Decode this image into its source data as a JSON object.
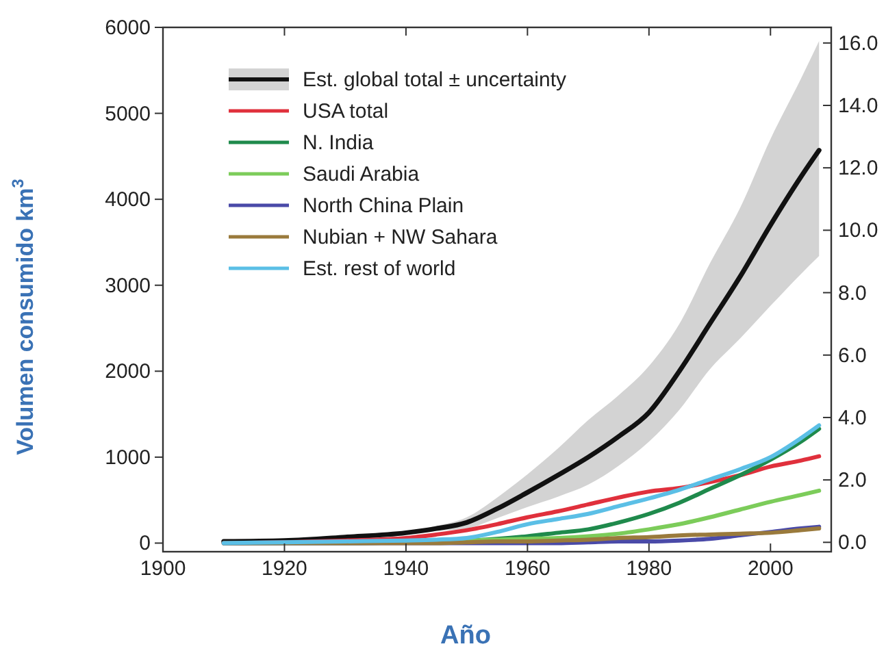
{
  "chart_data": {
    "type": "line",
    "xlabel": "Año",
    "ylabel": "Volumen consumido km$^{3}$",
    "xlim": [
      1900,
      2010
    ],
    "xticks": [
      1900,
      1920,
      1940,
      1960,
      1980,
      2000
    ],
    "ylim": [
      -100,
      6000
    ],
    "yticks": [
      0,
      1000,
      2000,
      3000,
      4000,
      5000,
      6000
    ],
    "y2lim": [
      -0.3,
      16.5
    ],
    "y2ticks": [
      {
        "value": 0,
        "label": "0.0"
      },
      {
        "value": 2,
        "label": "2.0"
      },
      {
        "value": 4,
        "label": "4.0"
      },
      {
        "value": 6,
        "label": "6.0"
      },
      {
        "value": 8,
        "label": "8.0"
      },
      {
        "value": 10,
        "label": "10.0"
      },
      {
        "value": 12,
        "label": "12.0"
      },
      {
        "value": 14,
        "label": "14.0"
      },
      {
        "value": 16,
        "label": "16.0"
      }
    ],
    "x": [
      1910,
      1920,
      1930,
      1940,
      1945,
      1950,
      1955,
      1960,
      1965,
      1970,
      1975,
      1980,
      1985,
      1990,
      1995,
      2000,
      2005,
      2008
    ],
    "legend": "top left",
    "grid": false,
    "line_style": "solid",
    "marker": "none",
    "series": [
      {
        "name": "Est. global total ± uncertainty",
        "color": "#111111",
        "values": [
          20,
          30,
          70,
          120,
          170,
          240,
          400,
          590,
          790,
          1000,
          1240,
          1520,
          2000,
          2550,
          3100,
          3700,
          4260,
          4570
        ],
        "lower": [
          20,
          30,
          60,
          100,
          140,
          170,
          290,
          420,
          540,
          680,
          900,
          1180,
          1550,
          2020,
          2380,
          2760,
          3130,
          3340
        ],
        "upper": [
          20,
          30,
          80,
          130,
          200,
          300,
          530,
          800,
          1100,
          1430,
          1720,
          2060,
          2550,
          3250,
          3900,
          4700,
          5400,
          5840
        ]
      },
      {
        "name": "USA total",
        "color": "#e0303c",
        "values": [
          0,
          10,
          30,
          60,
          100,
          150,
          220,
          300,
          370,
          450,
          530,
          600,
          640,
          710,
          790,
          890,
          960,
          1010
        ]
      },
      {
        "name": "N. India",
        "color": "#1f8a4c",
        "values": [
          0,
          0,
          0,
          10,
          20,
          30,
          50,
          80,
          120,
          160,
          240,
          340,
          470,
          630,
          790,
          970,
          1180,
          1330
        ]
      },
      {
        "name": "Saudi Arabia",
        "color": "#7ccc5a",
        "values": [
          null,
          null,
          null,
          null,
          20,
          30,
          40,
          50,
          60,
          80,
          110,
          160,
          220,
          300,
          390,
          480,
          560,
          610
        ]
      },
      {
        "name": "North China Plain",
        "color": "#4a4aa8",
        "values": [
          0,
          0,
          0,
          0,
          0,
          0,
          0,
          0,
          0,
          10,
          20,
          20,
          30,
          50,
          90,
          130,
          170,
          190
        ]
      },
      {
        "name": "Nubian + NW Sahara",
        "color": "#9a7a3c",
        "values": [
          0,
          0,
          0,
          0,
          0,
          10,
          20,
          20,
          30,
          40,
          60,
          70,
          90,
          100,
          110,
          120,
          150,
          170
        ]
      },
      {
        "name": "Est. rest of world",
        "color": "#5bbfe6",
        "values": [
          0,
          10,
          20,
          30,
          40,
          60,
          130,
          220,
          280,
          340,
          430,
          520,
          620,
          740,
          860,
          1000,
          1220,
          1370
        ]
      }
    ]
  }
}
